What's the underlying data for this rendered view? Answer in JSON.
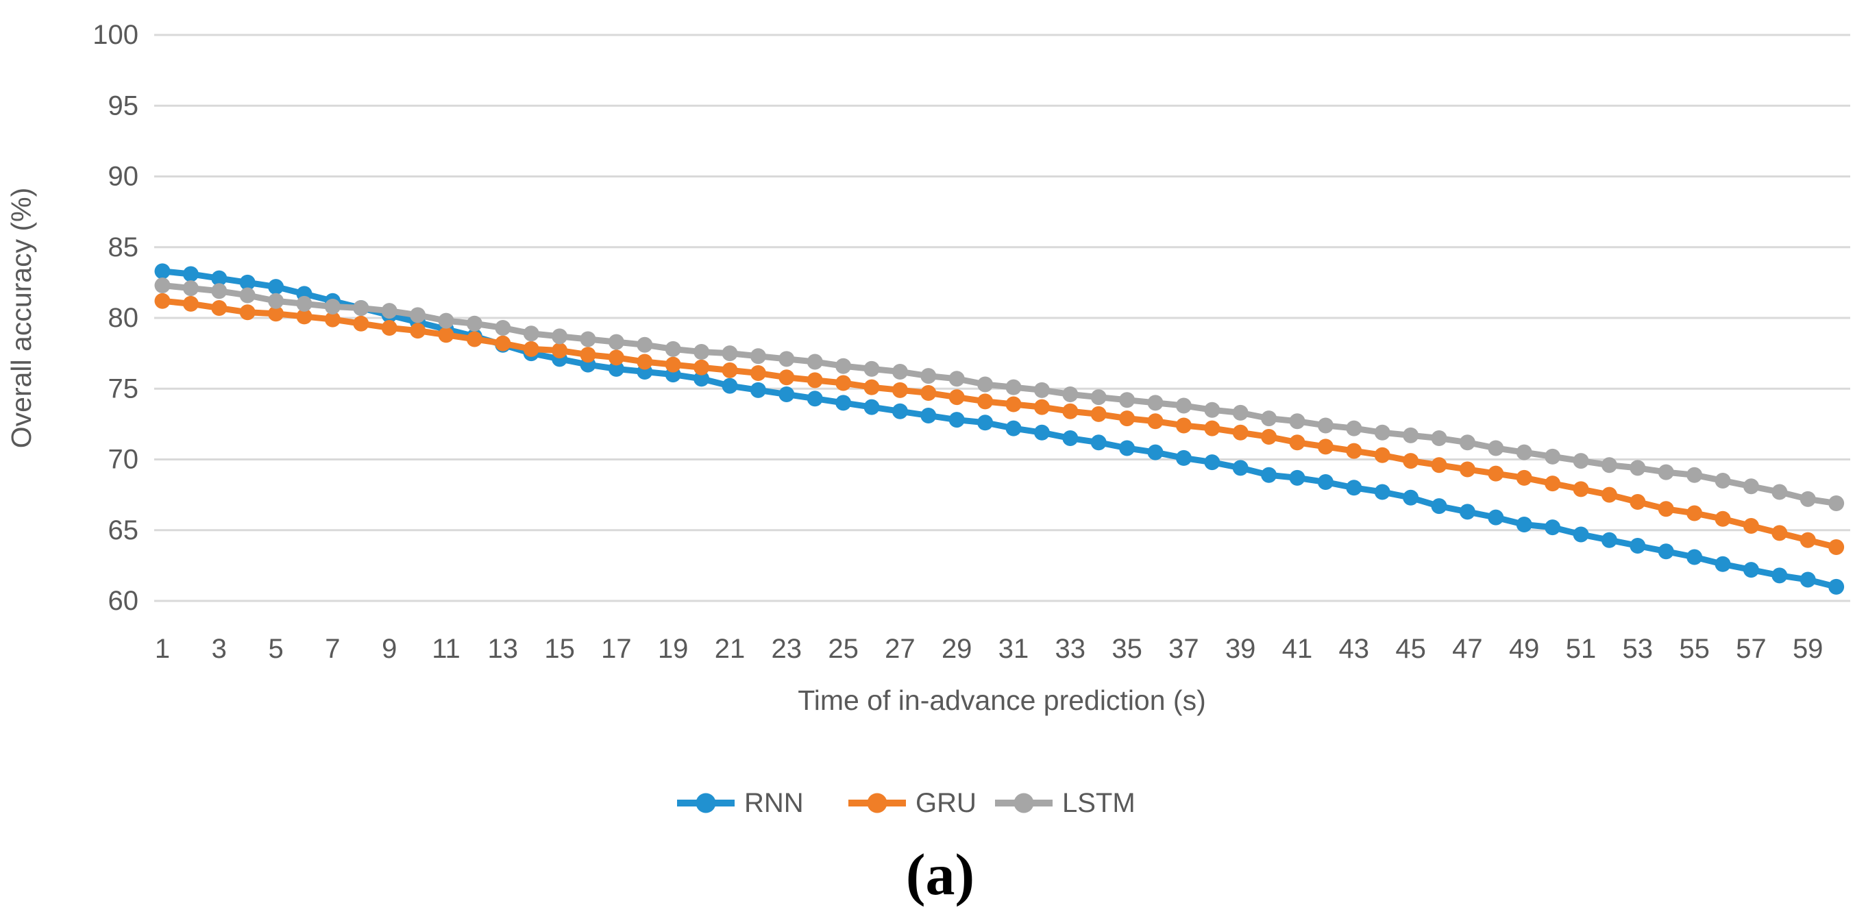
{
  "figure": {
    "caption": "(a)"
  },
  "chart_data": {
    "type": "line",
    "title": "",
    "xlabel": "Time of in-advance prediction (s)",
    "ylabel": "Overall accuracy (%)",
    "x_tick_labels": [
      "1",
      "3",
      "5",
      "7",
      "9",
      "11",
      "13",
      "15",
      "17",
      "19",
      "21",
      "23",
      "25",
      "27",
      "29",
      "31",
      "33",
      "35",
      "37",
      "39",
      "41",
      "43",
      "45",
      "47",
      "49",
      "51",
      "53",
      "55",
      "57",
      "59"
    ],
    "y_ticks": [
      100,
      95,
      90,
      85,
      80,
      75,
      70,
      65,
      60
    ],
    "ylim": [
      60,
      100
    ],
    "xlim": [
      1,
      60
    ],
    "grid": "horizontal",
    "legend_position": "bottom",
    "colors": {
      "gridline": "#d9d9d9",
      "tick_label": "#595959",
      "axis_title": "#595959",
      "legend_label": "#595959",
      "caption": "#000000"
    },
    "x": [
      1,
      2,
      3,
      4,
      5,
      6,
      7,
      8,
      9,
      10,
      11,
      12,
      13,
      14,
      15,
      16,
      17,
      18,
      19,
      20,
      21,
      22,
      23,
      24,
      25,
      26,
      27,
      28,
      29,
      30,
      31,
      32,
      33,
      34,
      35,
      36,
      37,
      38,
      39,
      40,
      41,
      42,
      43,
      44,
      45,
      46,
      47,
      48,
      49,
      50,
      51,
      52,
      53,
      54,
      55,
      56,
      57,
      58,
      59,
      60
    ],
    "series": [
      {
        "name": "RNN",
        "color": "#2191d0",
        "marker": "circle",
        "values": [
          83.3,
          83.1,
          82.8,
          82.5,
          82.2,
          81.7,
          81.2,
          80.7,
          80.2,
          79.7,
          79.2,
          78.7,
          78.1,
          77.5,
          77.1,
          76.7,
          76.4,
          76.2,
          76.0,
          75.7,
          75.2,
          74.9,
          74.6,
          74.3,
          74.0,
          73.7,
          73.4,
          73.1,
          72.8,
          72.6,
          72.2,
          71.9,
          71.5,
          71.2,
          70.8,
          70.5,
          70.1,
          69.8,
          69.4,
          68.9,
          68.7,
          68.4,
          68.0,
          67.7,
          67.3,
          66.7,
          66.3,
          65.9,
          65.4,
          65.2,
          64.7,
          64.3,
          63.9,
          63.5,
          63.1,
          62.6,
          62.2,
          61.8,
          61.5,
          61.0
        ]
      },
      {
        "name": "GRU",
        "color": "#f07e27",
        "marker": "circle",
        "values": [
          81.2,
          81.0,
          80.7,
          80.4,
          80.3,
          80.1,
          79.9,
          79.6,
          79.3,
          79.1,
          78.8,
          78.5,
          78.2,
          77.8,
          77.7,
          77.4,
          77.2,
          76.9,
          76.7,
          76.5,
          76.3,
          76.1,
          75.8,
          75.6,
          75.4,
          75.1,
          74.9,
          74.7,
          74.4,
          74.1,
          73.9,
          73.7,
          73.4,
          73.2,
          72.9,
          72.7,
          72.4,
          72.2,
          71.9,
          71.6,
          71.2,
          70.9,
          70.6,
          70.3,
          69.9,
          69.6,
          69.3,
          69.0,
          68.7,
          68.3,
          67.9,
          67.5,
          67.0,
          66.5,
          66.2,
          65.8,
          65.3,
          64.8,
          64.3,
          63.8
        ]
      },
      {
        "name": "LSTM",
        "color": "#a6a6a6",
        "marker": "circle",
        "values": [
          82.3,
          82.1,
          81.9,
          81.6,
          81.2,
          81.0,
          80.8,
          80.7,
          80.5,
          80.2,
          79.8,
          79.6,
          79.3,
          78.9,
          78.7,
          78.5,
          78.3,
          78.1,
          77.8,
          77.6,
          77.5,
          77.3,
          77.1,
          76.9,
          76.6,
          76.4,
          76.2,
          75.9,
          75.7,
          75.3,
          75.1,
          74.9,
          74.6,
          74.4,
          74.2,
          74.0,
          73.8,
          73.5,
          73.3,
          72.9,
          72.7,
          72.4,
          72.2,
          71.9,
          71.7,
          71.5,
          71.2,
          70.8,
          70.5,
          70.2,
          69.9,
          69.6,
          69.4,
          69.1,
          68.9,
          68.5,
          68.1,
          67.7,
          67.2,
          66.9
        ]
      }
    ]
  }
}
